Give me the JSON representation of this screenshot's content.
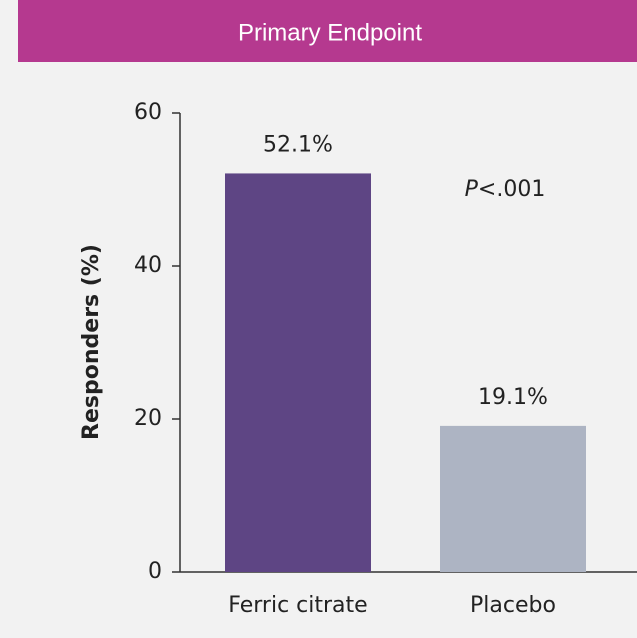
{
  "chart_data": {
    "type": "bar",
    "title": "Primary Endpoint",
    "ylabel": "Responders (%)",
    "categories": [
      "Ferric citrate",
      "Placebo"
    ],
    "values": [
      52.1,
      19.1
    ],
    "value_labels": [
      "52.1%",
      "19.1%"
    ],
    "colors": [
      "#5e4584",
      "#adb4c3"
    ],
    "ylim": [
      0,
      60
    ],
    "yticks": [
      0,
      20,
      40,
      60
    ],
    "annotation": "P<.001"
  }
}
